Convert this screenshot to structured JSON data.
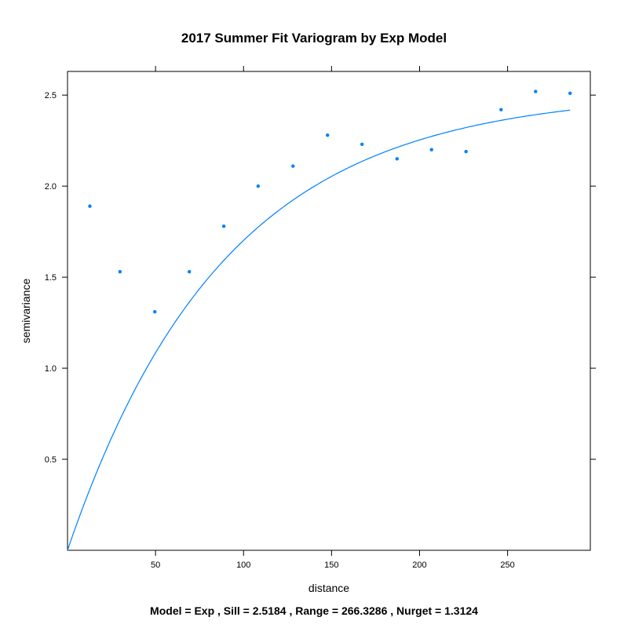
{
  "chart_data": {
    "type": "scatter",
    "title": "2017 Summer Fit Variogram by Exp Model",
    "xlabel": "distance",
    "ylabel": "semivariance",
    "caption": "Model = Exp , Sill = 2.5184 , Range = 266.3286 , Nurget = 1.3124",
    "xlim": [
      0,
      297
    ],
    "ylim": [
      0,
      2.63
    ],
    "x_ticks": [
      50,
      100,
      150,
      200,
      250
    ],
    "y_ticks": [
      0.5,
      1.0,
      1.5,
      2.0,
      2.5
    ],
    "x_tick_labels": [
      "50",
      "100",
      "150",
      "200",
      "250"
    ],
    "y_tick_labels": [
      "0.5",
      "1.0",
      "1.5",
      "2.0",
      "2.5"
    ],
    "grid": false,
    "point_color": "#0080ff",
    "line_color": "#0080ff",
    "points": [
      {
        "x": 12.7,
        "y": 1.89
      },
      {
        "x": 29.8,
        "y": 1.53
      },
      {
        "x": 49.6,
        "y": 1.31
      },
      {
        "x": 69.2,
        "y": 1.53
      },
      {
        "x": 88.8,
        "y": 1.78
      },
      {
        "x": 108.3,
        "y": 2.0
      },
      {
        "x": 128.1,
        "y": 2.11
      },
      {
        "x": 147.7,
        "y": 2.28
      },
      {
        "x": 167.3,
        "y": 2.23
      },
      {
        "x": 187.2,
        "y": 2.15
      },
      {
        "x": 206.8,
        "y": 2.2
      },
      {
        "x": 226.4,
        "y": 2.19
      },
      {
        "x": 246.3,
        "y": 2.42
      },
      {
        "x": 265.9,
        "y": 2.52
      },
      {
        "x": 285.5,
        "y": 2.51
      }
    ],
    "fitted_curve": {
      "model": "Exp",
      "sill": 2.5184,
      "range": 266.3286,
      "x_from": 0,
      "x_to": 285.5
    }
  }
}
